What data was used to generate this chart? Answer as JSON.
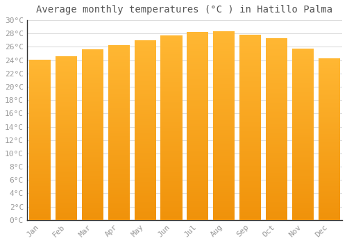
{
  "title": "Average monthly temperatures (°C ) in Hatillo Palma",
  "months": [
    "Jan",
    "Feb",
    "Mar",
    "Apr",
    "May",
    "Jun",
    "Jul",
    "Aug",
    "Sep",
    "Oct",
    "Nov",
    "Dec"
  ],
  "values": [
    24.1,
    24.6,
    25.6,
    26.3,
    27.0,
    27.7,
    28.2,
    28.3,
    27.8,
    27.3,
    25.7,
    24.3
  ],
  "bar_color_top": "#FFB733",
  "bar_color_bottom": "#F0920A",
  "ylim": [
    0,
    30
  ],
  "ytick_step": 2,
  "background_color": "#ffffff",
  "grid_color": "#dddddd",
  "title_fontsize": 10,
  "tick_fontsize": 8,
  "tick_color": "#999999",
  "title_color": "#555555",
  "font_family": "monospace",
  "bar_width": 0.82,
  "spine_color": "#333333"
}
